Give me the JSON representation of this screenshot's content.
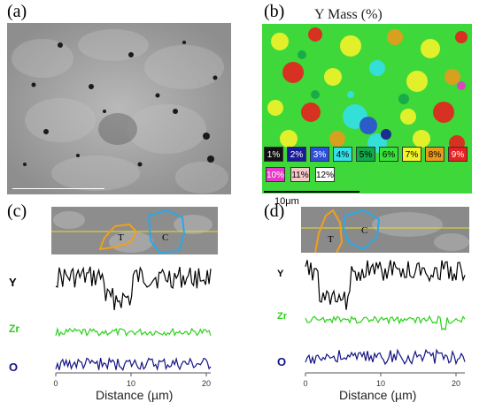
{
  "panels": {
    "a": {
      "label": "(a)"
    },
    "b": {
      "label": "(b)",
      "title": "Y Mass (%)",
      "scalebar": "10μm"
    },
    "c": {
      "label": "(c)"
    },
    "d": {
      "label": "(d)"
    }
  },
  "legend": [
    {
      "text": "1%",
      "color": "#111111",
      "fg": "#ffffff"
    },
    {
      "text": "2%",
      "color": "#1a1a9a",
      "fg": "#ffffff"
    },
    {
      "text": "3%",
      "color": "#2b4fd8",
      "fg": "#ffffff"
    },
    {
      "text": "4%",
      "color": "#33e0e8",
      "fg": "#000000"
    },
    {
      "text": "5%",
      "color": "#13a84a",
      "fg": "#000000"
    },
    {
      "text": "6%",
      "color": "#39e23a",
      "fg": "#000000"
    },
    {
      "text": "7%",
      "color": "#f3f32a",
      "fg": "#000000"
    },
    {
      "text": "8%",
      "color": "#e89a1a",
      "fg": "#000000"
    },
    {
      "text": "9%",
      "color": "#e82020",
      "fg": "#ffffff"
    },
    {
      "text": "10%",
      "color": "#e83ac8",
      "fg": "#ffffff"
    },
    {
      "text": "11%",
      "color": "#f4c8c8",
      "fg": "#000000"
    },
    {
      "text": "12%",
      "color": "#ffffff",
      "fg": "#000000"
    }
  ],
  "linescans": {
    "c": {
      "strip_labels": [
        "T",
        "C"
      ],
      "traces": [
        {
          "name": "Y",
          "color": "#000000"
        },
        {
          "name": "Zr",
          "color": "#2bd11a"
        },
        {
          "name": "O",
          "color": "#141485"
        }
      ],
      "x_ticks": [
        "0",
        "10",
        "20"
      ],
      "xlabel": "Distance (µm)"
    },
    "d": {
      "strip_labels": [
        "T",
        "C"
      ],
      "traces": [
        {
          "name": "Y",
          "color": "#000000"
        },
        {
          "name": "Zr",
          "color": "#2bd11a"
        },
        {
          "name": "O",
          "color": "#141485"
        }
      ],
      "x_ticks": [
        "0",
        "10",
        "20"
      ],
      "xlabel": "Distance (µm)"
    }
  }
}
